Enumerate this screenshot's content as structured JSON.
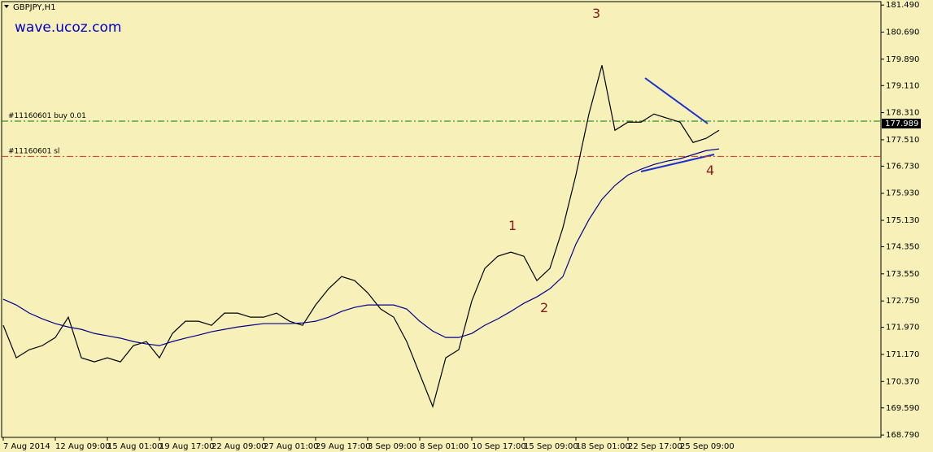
{
  "chart_data": {
    "type": "line",
    "title": "GBPJPY,H1",
    "watermark": "wave.ucoz.com",
    "categories": [
      "7 Aug 2014",
      null,
      null,
      null,
      "12 Aug 09:00",
      null,
      null,
      null,
      "15 Aug 01:00",
      null,
      null,
      null,
      "19 Aug 17:00",
      null,
      null,
      null,
      "22 Aug 09:00",
      null,
      null,
      null,
      "27 Aug 01:00",
      null,
      null,
      null,
      "29 Aug 17:00",
      null,
      null,
      null,
      "3 Sep 09:00",
      null,
      null,
      null,
      "8 Sep 01:00",
      null,
      null,
      null,
      "10 Sep 17:00",
      null,
      null,
      null,
      "15 Sep 09:00",
      null,
      null,
      null,
      "18 Sep 01:00",
      null,
      null,
      null,
      "22 Sep 17:00",
      null,
      null,
      null,
      "25 Sep 09:00",
      null,
      null,
      null
    ],
    "series": [
      {
        "color": "#000000",
        "values": [
          172.03,
          171.07,
          171.31,
          171.43,
          171.67,
          172.27,
          171.07,
          170.95,
          171.07,
          170.95,
          171.43,
          171.55,
          171.07,
          171.79,
          172.15,
          172.15,
          172.03,
          172.39,
          172.39,
          172.27,
          172.27,
          172.39,
          172.15,
          172.03,
          172.63,
          173.11,
          173.47,
          173.35,
          172.99,
          172.51,
          172.27,
          171.55,
          170.59,
          169.63,
          171.07,
          171.31,
          172.75,
          173.71,
          174.07,
          174.19,
          174.07,
          173.35,
          173.71,
          174.91,
          176.47,
          178.27,
          179.71,
          177.79,
          178.03,
          178.03,
          178.27,
          178.15,
          178.03,
          177.43,
          177.55,
          177.79
        ]
      },
      {
        "color": "#00008b",
        "values": [
          172.8,
          172.63,
          172.39,
          172.22,
          172.08,
          171.98,
          171.91,
          171.79,
          171.72,
          171.65,
          171.55,
          171.48,
          171.43,
          171.55,
          171.65,
          171.74,
          171.84,
          171.91,
          171.98,
          172.03,
          172.08,
          172.08,
          172.08,
          172.1,
          172.15,
          172.27,
          172.44,
          172.56,
          172.63,
          172.63,
          172.63,
          172.51,
          172.15,
          171.86,
          171.67,
          171.67,
          171.79,
          172.03,
          172.22,
          172.44,
          172.68,
          172.87,
          173.11,
          173.47,
          174.43,
          175.15,
          175.75,
          176.16,
          176.47,
          176.64,
          176.78,
          176.88,
          176.95,
          177.07,
          177.19,
          177.24
        ]
      }
    ],
    "ylim": [
      168.72,
      181.59
    ],
    "yticks": [
      {
        "value": 181.49,
        "label": "181.490"
      },
      {
        "value": 180.69,
        "label": "180.690"
      },
      {
        "value": 179.89,
        "label": "179.890"
      },
      {
        "value": 179.11,
        "label": "179.110"
      },
      {
        "value": 178.31,
        "label": "178.310"
      },
      {
        "value": 177.51,
        "label": "177.510"
      },
      {
        "value": 176.73,
        "label": "176.730"
      },
      {
        "value": 175.93,
        "label": "175.930"
      },
      {
        "value": 175.13,
        "label": "175.130"
      },
      {
        "value": 174.35,
        "label": "174.350"
      },
      {
        "value": 173.55,
        "label": "173.550"
      },
      {
        "value": 172.75,
        "label": "172.750"
      },
      {
        "value": 171.97,
        "label": "171.970"
      },
      {
        "value": 171.17,
        "label": "171.170"
      },
      {
        "value": 170.37,
        "label": "170.370"
      },
      {
        "value": 169.59,
        "label": "169.590"
      },
      {
        "value": 168.79,
        "label": "168.790"
      }
    ],
    "levels": [
      {
        "label": "#11160601 buy 0.01",
        "value": 178.06,
        "color": "#008000"
      },
      {
        "label": "#11160601 sl",
        "value": 177.02,
        "color": "#e03020"
      }
    ],
    "current_price": {
      "value": 177.989,
      "label": "177.989"
    },
    "annotations": [
      "1",
      "2",
      "3",
      "4"
    ]
  }
}
